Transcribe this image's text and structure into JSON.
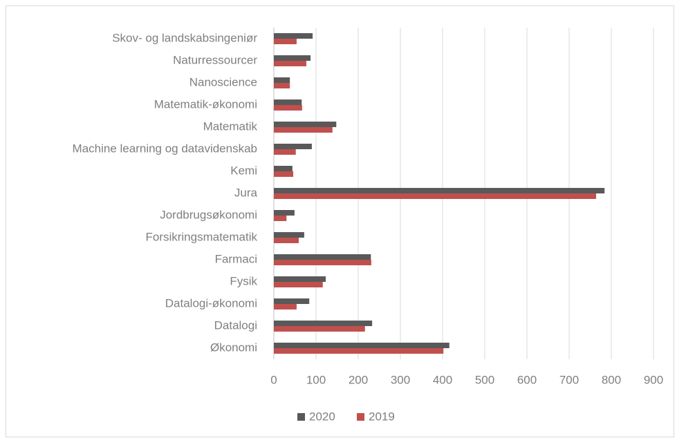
{
  "chart_data": {
    "type": "bar",
    "orientation": "horizontal",
    "categories": [
      "Skov- og landskabsingeniør",
      "Naturressourcer",
      "Nanoscience",
      "Matematik-økonomi",
      "Matematik",
      "Machine learning og datavidenskab",
      "Kemi",
      "Jura",
      "Jordbrugsøkonomi",
      "Forsikringsmatematik",
      "Farmaci",
      "Fysik",
      "Datalogi-økonomi",
      "Datalogi",
      "Økonomi"
    ],
    "series": [
      {
        "name": "2020",
        "color": "#595959",
        "values": [
          92,
          87,
          38,
          66,
          148,
          90,
          44,
          784,
          49,
          72,
          230,
          123,
          84,
          233,
          416
        ]
      },
      {
        "name": "2019",
        "color": "#c0504d",
        "values": [
          54,
          77,
          38,
          67,
          139,
          52,
          46,
          764,
          30,
          59,
          231,
          116,
          54,
          216,
          402
        ]
      }
    ],
    "xlim": [
      0,
      900
    ],
    "xticks": [
      0,
      100,
      200,
      300,
      400,
      500,
      600,
      700,
      800,
      900
    ],
    "grid": true,
    "legend": "bottom"
  }
}
